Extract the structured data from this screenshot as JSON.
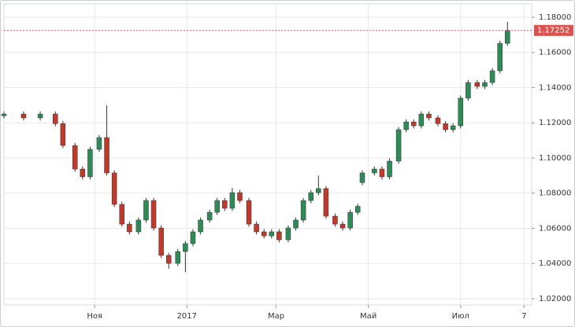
{
  "chart_data": {
    "type": "candlestick",
    "x": [
      -10,
      3,
      14,
      24,
      29,
      37,
      42,
      47,
      53,
      58,
      63,
      68,
      73,
      79,
      84,
      89,
      94,
      99,
      105,
      110,
      115,
      120,
      126,
      131,
      136,
      141,
      146,
      152,
      157,
      162,
      167,
      172,
      178,
      183,
      188,
      193,
      198,
      203,
      209,
      214,
      219,
      224,
      227,
      235,
      240,
      245,
      251,
      256,
      261,
      266,
      271,
      277,
      282,
      287,
      292,
      297,
      303,
      308,
      313,
      318,
      323
    ],
    "open": [
      1.124,
      1.125,
      1.1228,
      1.125,
      1.1195,
      1.1071,
      1.0937,
      1.0893,
      1.1049,
      1.1116,
      1.0915,
      1.0736,
      1.0624,
      1.058,
      1.0647,
      1.0758,
      1.0602,
      1.0446,
      1.0401,
      1.0468,
      1.0513,
      1.058,
      1.0647,
      1.0691,
      1.0758,
      1.0714,
      1.0803,
      1.0758,
      1.0624,
      1.058,
      1.0557,
      1.058,
      1.0535,
      1.0602,
      1.0647,
      1.0758,
      1.0803,
      1.0826,
      1.0669,
      1.0624,
      1.0602,
      1.0691,
      1.086,
      1.0915,
      1.0937,
      1.0893,
      1.0982,
      1.1161,
      1.1205,
      1.1183,
      1.125,
      1.1228,
      1.1195,
      1.1161,
      1.1183,
      1.134,
      1.1429,
      1.1407,
      1.1429,
      1.1496,
      1.1652
    ],
    "high": [
      1.1265,
      1.1265,
      1.1265,
      1.1265,
      1.121,
      1.1086,
      1.0952,
      1.1064,
      1.1131,
      1.13,
      1.093,
      1.0751,
      1.0639,
      1.0662,
      1.0773,
      1.0773,
      1.0617,
      1.0461,
      1.0483,
      1.0528,
      1.0595,
      1.0662,
      1.0706,
      1.0773,
      1.0773,
      1.0829,
      1.0818,
      1.0773,
      1.0639,
      1.0595,
      1.0595,
      1.0595,
      1.0617,
      1.0662,
      1.0773,
      1.0818,
      1.09,
      1.0841,
      1.0684,
      1.0639,
      1.0706,
      1.074,
      1.093,
      1.0952,
      1.0952,
      1.0997,
      1.1176,
      1.122,
      1.122,
      1.1265,
      1.1265,
      1.1243,
      1.121,
      1.1198,
      1.1355,
      1.1444,
      1.1444,
      1.1444,
      1.1511,
      1.1667,
      1.1775
    ],
    "low": [
      1.1225,
      1.1213,
      1.1213,
      1.118,
      1.1056,
      1.0922,
      1.0878,
      1.0878,
      1.1034,
      1.09,
      1.0721,
      1.0609,
      1.0565,
      1.0565,
      1.0632,
      1.0587,
      1.0431,
      1.037,
      1.0386,
      1.035,
      1.0498,
      1.0565,
      1.0632,
      1.0676,
      1.0699,
      1.0699,
      1.0743,
      1.0609,
      1.0565,
      1.0542,
      1.0542,
      1.052,
      1.052,
      1.0587,
      1.0632,
      1.0743,
      1.0788,
      1.0654,
      1.0609,
      1.0587,
      1.0587,
      1.0676,
      1.0845,
      1.09,
      1.0878,
      1.0878,
      1.0967,
      1.1146,
      1.1168,
      1.1168,
      1.1213,
      1.118,
      1.1146,
      1.1146,
      1.1168,
      1.1325,
      1.1392,
      1.1392,
      1.1414,
      1.1481,
      1.1637
    ],
    "close": [
      1.125,
      1.1228,
      1.125,
      1.1195,
      1.1071,
      1.0937,
      1.0893,
      1.1049,
      1.1116,
      1.0915,
      1.0736,
      1.0624,
      1.058,
      1.0647,
      1.0758,
      1.0602,
      1.0446,
      1.0401,
      1.0468,
      1.0513,
      1.058,
      1.0647,
      1.0691,
      1.0758,
      1.0714,
      1.0803,
      1.0758,
      1.0624,
      1.058,
      1.0557,
      1.058,
      1.0535,
      1.0602,
      1.0647,
      1.0758,
      1.0803,
      1.0826,
      1.0669,
      1.0624,
      1.0602,
      1.0691,
      1.0725,
      1.0915,
      1.0937,
      1.0893,
      1.0982,
      1.1161,
      1.1205,
      1.1183,
      1.125,
      1.1228,
      1.1195,
      1.1161,
      1.1183,
      1.134,
      1.1429,
      1.1407,
      1.1429,
      1.1496,
      1.1652,
      1.1725
    ],
    "up_color": "#2e8b57",
    "down_color": "#c0392b",
    "wick_color": "#333333",
    "xlim": [
      -10,
      339
    ],
    "xticks": [
      {
        "value": 50,
        "label": "Ноя"
      },
      {
        "value": 111,
        "label": "2017"
      },
      {
        "value": 170,
        "label": "Мар"
      },
      {
        "value": 231,
        "label": "Май"
      },
      {
        "value": 292,
        "label": "Июл"
      },
      {
        "value": 334,
        "label": "7"
      }
    ],
    "ylim": [
      1.0164,
      1.1876
    ],
    "yticks": [
      {
        "value": 1.02,
        "label": "1.02000"
      },
      {
        "value": 1.04,
        "label": "1.04000"
      },
      {
        "value": 1.06,
        "label": "1.06000"
      },
      {
        "value": 1.08,
        "label": "1.08000"
      },
      {
        "value": 1.1,
        "label": "1.10000"
      },
      {
        "value": 1.12,
        "label": "1.12000"
      },
      {
        "value": 1.14,
        "label": "1.14000"
      },
      {
        "value": 1.16,
        "label": "1.16000"
      },
      {
        "value": 1.18,
        "label": "1.18000"
      }
    ],
    "last_price": 1.17252,
    "last_price_color": "#d9534f",
    "grid": true
  }
}
